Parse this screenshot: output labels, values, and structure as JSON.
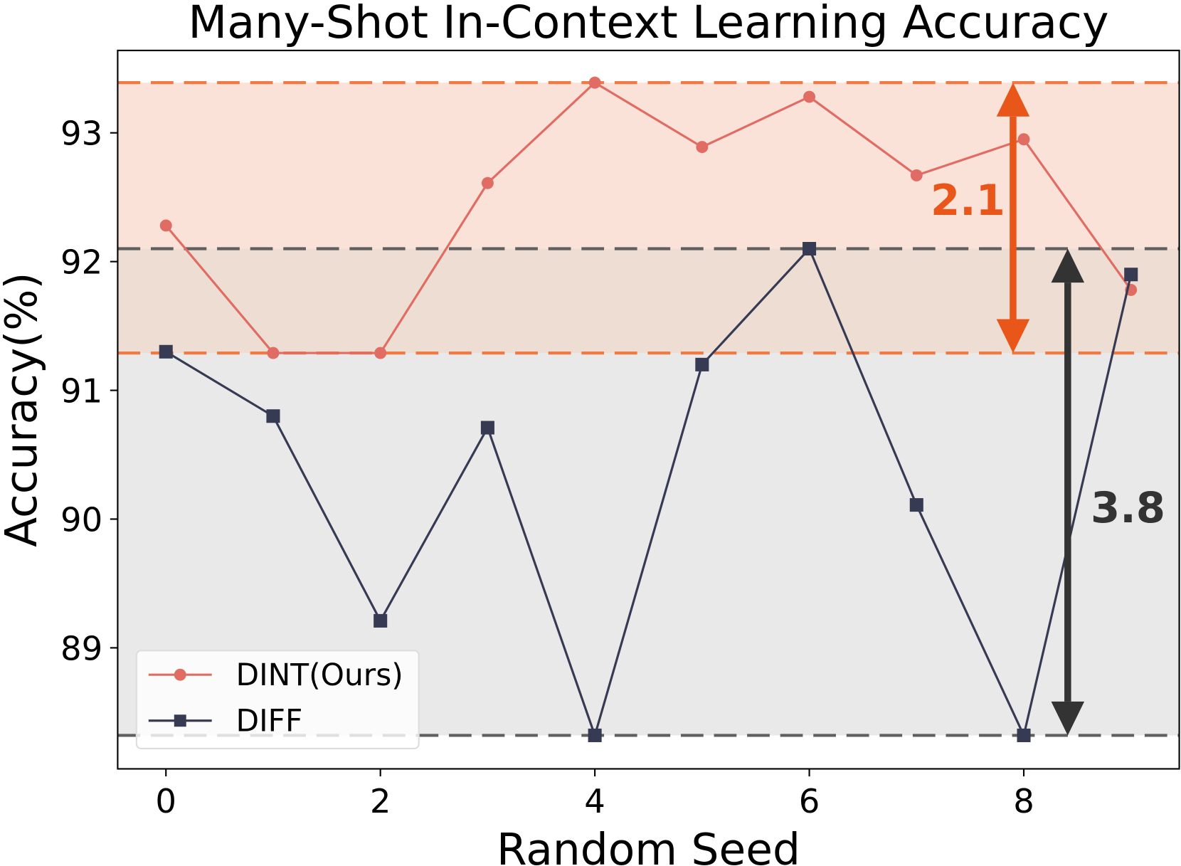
{
  "chart_data": {
    "type": "line",
    "title": "Many-Shot In-Context Learning Accuracy",
    "xlabel": "Random Seed",
    "ylabel": "Accuracy(%)",
    "xlim": [
      -0.45,
      9.45
    ],
    "ylim": [
      88.06,
      93.64
    ],
    "xticks": [
      0,
      2,
      4,
      6,
      8
    ],
    "yticks": [
      89,
      90,
      91,
      92,
      93
    ],
    "grid": false,
    "legend_position": "bottom-left",
    "x": [
      0,
      1,
      2,
      3,
      4,
      5,
      6,
      7,
      8,
      9
    ],
    "series": [
      {
        "name": "DINT(Ours)",
        "marker": "circle",
        "color": "#e06c63",
        "values": [
          92.28,
          91.29,
          91.29,
          92.61,
          93.39,
          92.89,
          93.28,
          92.67,
          92.95,
          91.78
        ]
      },
      {
        "name": "DIFF",
        "marker": "square",
        "color": "#363a52",
        "values": [
          91.3,
          90.8,
          89.21,
          90.71,
          88.32,
          91.2,
          92.1,
          90.11,
          88.32,
          91.9
        ]
      }
    ],
    "bands": [
      {
        "from": 91.29,
        "to": 93.39,
        "fill": "#fbe2d8",
        "line_color": "#ee7a45"
      },
      {
        "from": 88.32,
        "to": 92.1,
        "fill": "#e9e9e9",
        "line_color": "#5f5f5f",
        "overlap_fill": "#eeddd3"
      }
    ],
    "annotations": [
      {
        "text": "2.1",
        "x": 7.9,
        "from": 91.29,
        "to": 93.39,
        "color": "#e8561a"
      },
      {
        "text": "3.8",
        "x": 8.41,
        "from": 88.32,
        "to": 92.1,
        "color": "#333333"
      }
    ]
  }
}
